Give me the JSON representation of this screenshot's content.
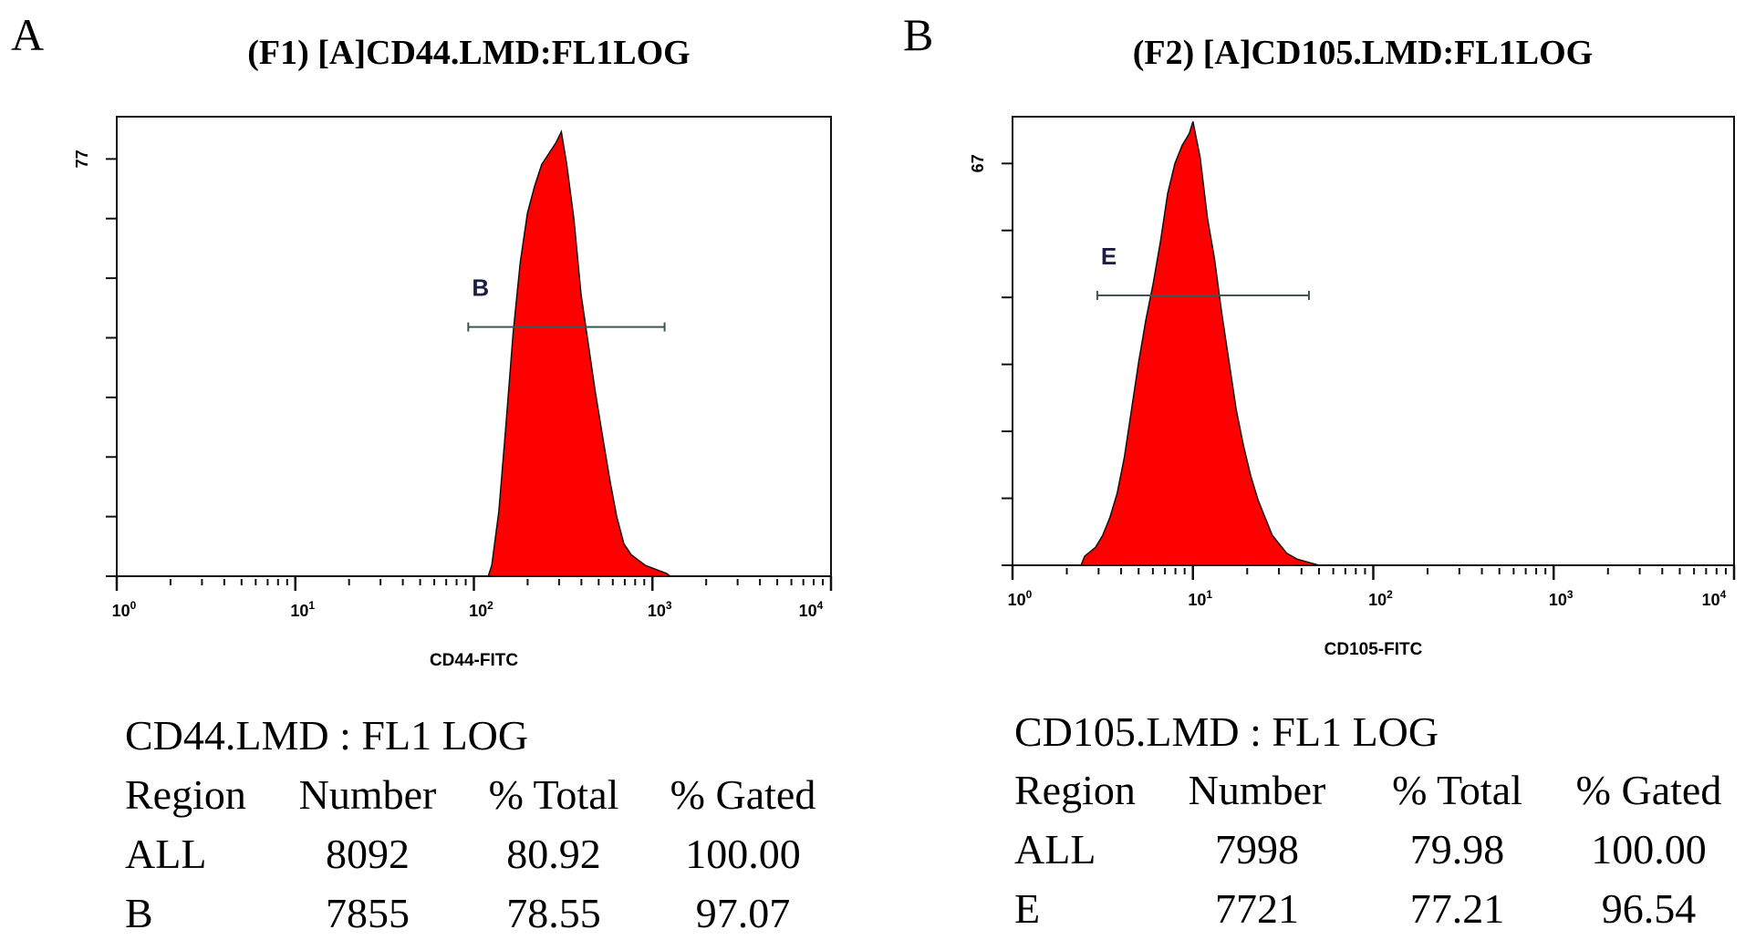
{
  "chart_data": [
    {
      "type": "histogram",
      "panel_label": "A",
      "title": "(F1) [A]CD44.LMD:FL1LOG",
      "xlabel": "CD44-FITC",
      "ylabel_max": "77",
      "x_scale": "log",
      "xlim_log10": [
        0,
        4
      ],
      "ylim": [
        0,
        84.8
      ],
      "y_tick_max": 77,
      "y_tick_count": 7,
      "x_tick_labels": [
        {
          "base": "10",
          "exp": "0"
        },
        {
          "base": "10",
          "exp": "1"
        },
        {
          "base": "10",
          "exp": "2"
        },
        {
          "base": "10",
          "exp": "3"
        },
        {
          "base": "10",
          "exp": "4"
        }
      ],
      "fill_color": "#ff0000",
      "gate": {
        "label": "B",
        "x_range": [
          93,
          1170
        ],
        "y": 46
      },
      "points_log10x_count": [
        [
          2.08,
          0
        ],
        [
          2.1,
          2
        ],
        [
          2.14,
          12
        ],
        [
          2.18,
          28
        ],
        [
          2.22,
          45
        ],
        [
          2.26,
          58
        ],
        [
          2.3,
          67
        ],
        [
          2.34,
          72
        ],
        [
          2.38,
          76
        ],
        [
          2.42,
          78
        ],
        [
          2.46,
          80
        ],
        [
          2.49,
          82
        ],
        [
          2.52,
          76
        ],
        [
          2.56,
          66
        ],
        [
          2.6,
          52
        ],
        [
          2.64,
          43
        ],
        [
          2.68,
          34
        ],
        [
          2.72,
          26
        ],
        [
          2.76,
          18
        ],
        [
          2.8,
          11
        ],
        [
          2.84,
          6
        ],
        [
          2.88,
          4
        ],
        [
          2.92,
          3
        ],
        [
          2.96,
          2
        ],
        [
          3.0,
          1.5
        ],
        [
          3.04,
          1
        ],
        [
          3.08,
          0.5
        ],
        [
          3.1,
          0
        ]
      ],
      "stats": {
        "title": "CD44.LMD : FL1 LOG",
        "headers": [
          "Region",
          "Number",
          "% Total",
          "% Gated"
        ],
        "rows": [
          [
            "ALL",
            "8092",
            "80.92",
            "100.00"
          ],
          [
            "B",
            "7855",
            "78.55",
            "97.07"
          ]
        ]
      }
    },
    {
      "type": "histogram",
      "panel_label": "B",
      "title": "(F2) [A]CD105.LMD:FL1LOG",
      "xlabel": "CD105-FITC",
      "ylabel_max": "67",
      "x_scale": "log",
      "xlim_log10": [
        0,
        4
      ],
      "ylim": [
        0,
        74.8
      ],
      "y_tick_max": 67,
      "y_tick_count": 6,
      "x_tick_labels": [
        {
          "base": "10",
          "exp": "0"
        },
        {
          "base": "10",
          "exp": "1"
        },
        {
          "base": "10",
          "exp": "2"
        },
        {
          "base": "10",
          "exp": "3"
        },
        {
          "base": "10",
          "exp": "4"
        }
      ],
      "fill_color": "#ff0000",
      "gate": {
        "label": "E",
        "x_range": [
          2.95,
          44
        ],
        "y": 45
      },
      "points_log10x_count": [
        [
          0.38,
          0
        ],
        [
          0.4,
          1.5
        ],
        [
          0.46,
          3
        ],
        [
          0.5,
          5
        ],
        [
          0.54,
          8
        ],
        [
          0.58,
          12
        ],
        [
          0.62,
          18
        ],
        [
          0.66,
          26
        ],
        [
          0.7,
          34
        ],
        [
          0.74,
          41
        ],
        [
          0.78,
          47
        ],
        [
          0.82,
          54
        ],
        [
          0.86,
          62
        ],
        [
          0.9,
          67
        ],
        [
          0.94,
          70
        ],
        [
          0.98,
          72
        ],
        [
          1.0,
          74
        ],
        [
          1.04,
          68
        ],
        [
          1.08,
          58
        ],
        [
          1.12,
          51
        ],
        [
          1.16,
          42
        ],
        [
          1.2,
          34
        ],
        [
          1.24,
          26
        ],
        [
          1.28,
          20
        ],
        [
          1.32,
          15
        ],
        [
          1.36,
          11
        ],
        [
          1.4,
          8
        ],
        [
          1.44,
          5
        ],
        [
          1.48,
          3.5
        ],
        [
          1.52,
          2
        ],
        [
          1.58,
          1
        ],
        [
          1.64,
          0.5
        ],
        [
          1.7,
          0
        ]
      ],
      "stats": {
        "title": "CD105.LMD : FL1 LOG",
        "headers": [
          "Region",
          "Number",
          "% Total",
          "% Gated"
        ],
        "rows": [
          [
            "ALL",
            "7998",
            "79.98",
            "100.00"
          ],
          [
            "E",
            "7721",
            "77.21",
            "96.54"
          ]
        ]
      }
    }
  ]
}
